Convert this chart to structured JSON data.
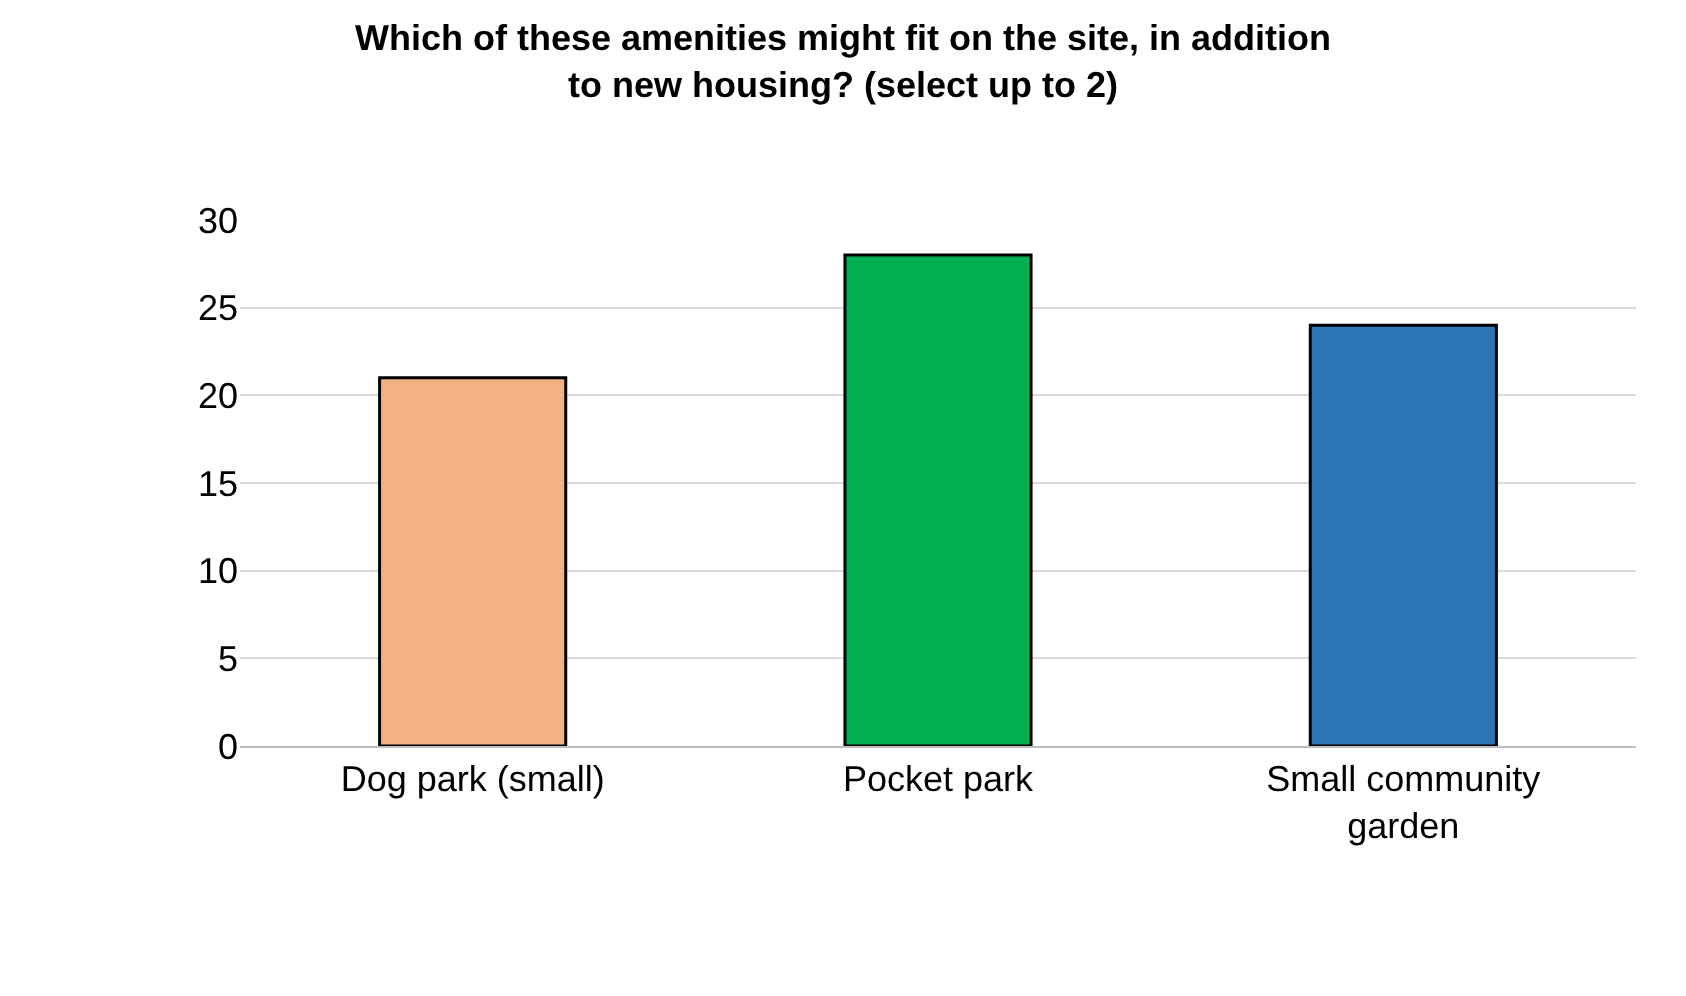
{
  "chart_data": {
    "type": "bar",
    "title": "Which of these amenities might fit on the site, in addition to new housing? (select up to 2)",
    "categories": [
      "Dog park (small)",
      "Pocket park",
      "Small community garden"
    ],
    "values": [
      21,
      28,
      24
    ],
    "colors": [
      "#f4b183",
      "#00b050",
      "#2e75b6"
    ],
    "ylim": [
      0,
      30
    ],
    "yticks": [
      0,
      5,
      10,
      15,
      20,
      25,
      30
    ],
    "grid": "y",
    "legend": false
  }
}
